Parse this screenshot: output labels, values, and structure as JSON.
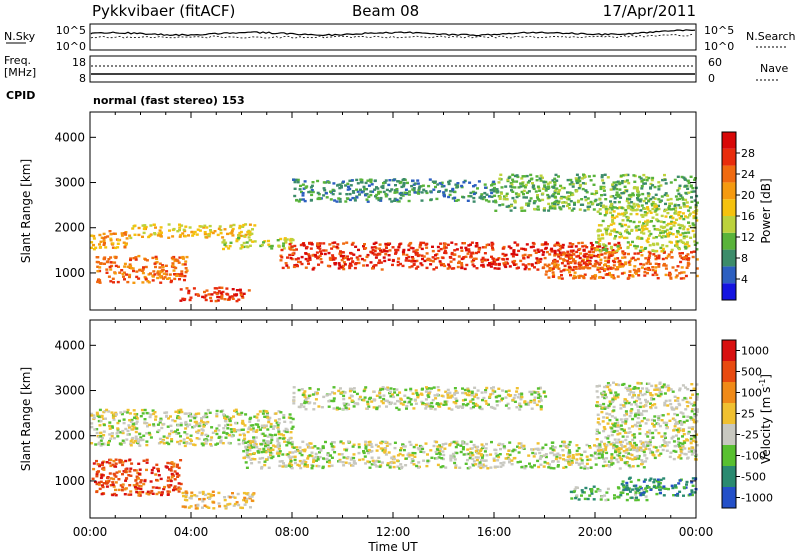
{
  "header": {
    "station": "Pykkvibaer (fitACF)",
    "beam": "Beam 08",
    "date": "17/Apr/2011"
  },
  "sky_panel": {
    "left_label": "N.Sky",
    "left_ticks": [
      "10^5",
      "10^0"
    ],
    "right_ticks": [
      "10^5",
      "10^0"
    ],
    "right_label": "N.Search"
  },
  "freq_panel": {
    "left_label_1": "Freq.",
    "left_label_2": "[MHz]",
    "left_ticks": [
      "18",
      "8"
    ],
    "right_ticks": [
      "60",
      "0"
    ],
    "right_label": "Nave",
    "cpid_label": "CPID",
    "cpid_text": "normal (fast stereo) 153"
  },
  "chart_data": [
    {
      "type": "heatmap",
      "name": "power",
      "ylabel": "Slant Range [km]",
      "ylim": [
        180,
        4560
      ],
      "yticks": [
        1000,
        2000,
        3000,
        4000
      ],
      "xlabel": "Time UT",
      "xlim": [
        0,
        24
      ],
      "xticks": [
        "00:00",
        "04:00",
        "08:00",
        "12:00",
        "16:00",
        "20:00",
        "00:00"
      ],
      "colorbar": {
        "label": "Power [dB]",
        "ticks": [
          "4",
          "8",
          "12",
          "16",
          "20",
          "24",
          "28"
        ],
        "colors": [
          "#1414e0",
          "#2c5fc0",
          "#3c8c6a",
          "#59b33a",
          "#bcd23c",
          "#f5c20e",
          "#f59a10",
          "#f06a10",
          "#e82c0c",
          "#d80808"
        ]
      },
      "bands": [
        {
          "t": [
            0,
            1.5
          ],
          "r": [
            1550,
            1950
          ],
          "level": 6
        },
        {
          "t": [
            1.5,
            6.5
          ],
          "r": [
            1800,
            2100
          ],
          "level": 5
        },
        {
          "t": [
            0.2,
            3.8
          ],
          "r": [
            800,
            1400
          ],
          "level": 7
        },
        {
          "t": [
            3.5,
            6.3
          ],
          "r": [
            400,
            700
          ],
          "level": 8
        },
        {
          "t": [
            5.2,
            8
          ],
          "r": [
            1550,
            1800
          ],
          "level": 4
        },
        {
          "t": [
            7.5,
            21
          ],
          "r": [
            1100,
            1700
          ],
          "level": 8
        },
        {
          "t": [
            18,
            24
          ],
          "r": [
            900,
            1500
          ],
          "level": 7
        },
        {
          "t": [
            8,
            16
          ],
          "r": [
            2600,
            3100
          ],
          "level": 2
        },
        {
          "t": [
            16,
            24
          ],
          "r": [
            2400,
            3200
          ],
          "level": 3
        },
        {
          "t": [
            20,
            24
          ],
          "r": [
            1500,
            2500
          ],
          "level": 4
        }
      ]
    },
    {
      "type": "heatmap",
      "name": "velocity",
      "ylabel": "Slant Range [km]",
      "ylim": [
        180,
        4560
      ],
      "yticks": [
        1000,
        2000,
        3000,
        4000
      ],
      "xlabel": "Time UT",
      "xlim": [
        0,
        24
      ],
      "xticks": [
        "00:00",
        "04:00",
        "08:00",
        "12:00",
        "16:00",
        "20:00",
        "00:00"
      ],
      "colorbar": {
        "label": "Velocity [m s^-1]",
        "ticks": [
          "1000",
          "500",
          "100",
          "25",
          "-25",
          "-100",
          "-500",
          "-1000"
        ],
        "colors": [
          "#2450c8",
          "#2a8a70",
          "#58c030",
          "#c8c8c0",
          "#f0c030",
          "#f08a18",
          "#e84a10",
          "#d81010"
        ]
      },
      "bands": [
        {
          "t": [
            0,
            8
          ],
          "r": [
            1800,
            2600
          ],
          "level": 3
        },
        {
          "t": [
            6,
            22
          ],
          "r": [
            1300,
            1900
          ],
          "level": 3
        },
        {
          "t": [
            8,
            18
          ],
          "r": [
            2600,
            3100
          ],
          "level": 3
        },
        {
          "t": [
            0,
            3.6
          ],
          "r": [
            700,
            1500
          ],
          "level": 6
        },
        {
          "t": [
            3.6,
            6.5
          ],
          "r": [
            400,
            800
          ],
          "level": 4
        },
        {
          "t": [
            19,
            22
          ],
          "r": [
            600,
            900
          ],
          "level": 2
        },
        {
          "t": [
            21,
            24
          ],
          "r": [
            700,
            1100
          ],
          "level": 1
        },
        {
          "t": [
            20,
            24
          ],
          "r": [
            1500,
            3200
          ],
          "level": 3
        }
      ]
    }
  ]
}
